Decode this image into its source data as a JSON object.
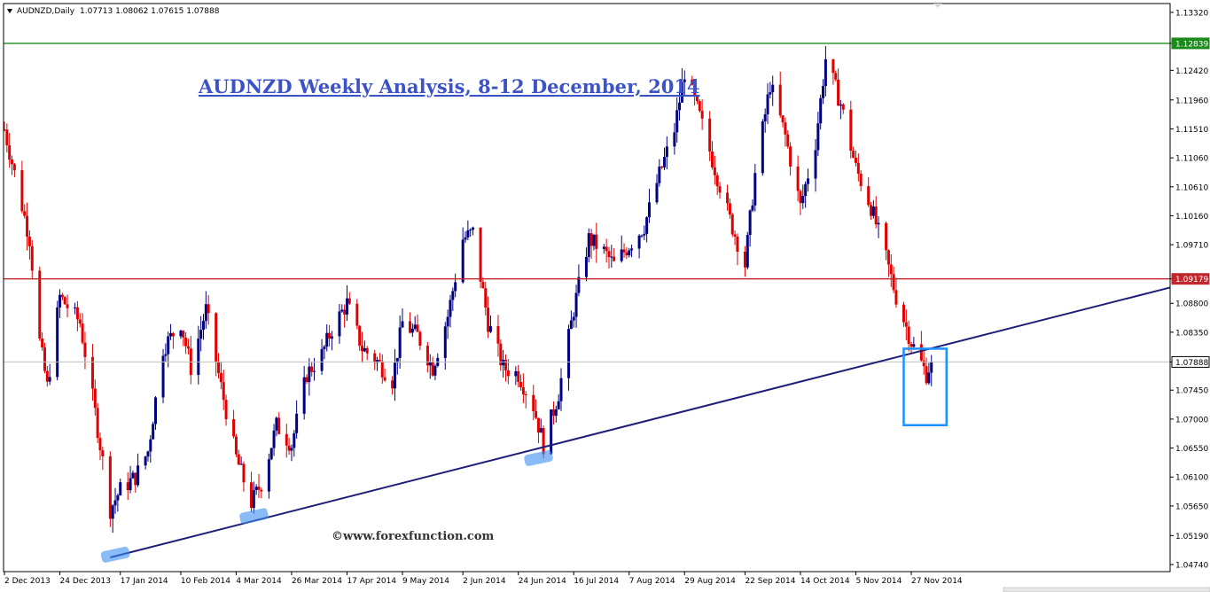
{
  "header": {
    "symbol": "AUDNZD,Daily",
    "ohlc": "1.07713 1.08062 1.07615 1.07888",
    "menu_icon": "triangle-down-icon"
  },
  "title": "AUDNZD Weekly Analysis, 8-12 December, 2014",
  "watermark": "©www.forexfunction.com",
  "chart_data": {
    "type": "candlestick",
    "symbol": "AUDNZD",
    "timeframe": "Daily",
    "title": "AUDNZD Weekly Analysis, 8-12 December, 2014",
    "ylim": [
      1.0474,
      1.1332
    ],
    "y_ticks": [
      "1.13320",
      "1.12839",
      "1.12420",
      "1.11960",
      "1.11510",
      "1.11060",
      "1.10610",
      "1.10160",
      "1.09710",
      "1.09179",
      "1.08800",
      "1.08350",
      "1.07888",
      "1.07450",
      "1.07000",
      "1.06550",
      "1.06100",
      "1.05650",
      "1.05190",
      "1.04740"
    ],
    "x_ticks": [
      "2 Dec 2013",
      "24 Dec 2013",
      "17 Jan 2014",
      "10 Feb 2014",
      "4 Mar 2014",
      "26 Mar 2014",
      "17 Apr 2014",
      "9 May 2014",
      "2 Jun 2014",
      "24 Jun 2014",
      "16 Jul 2014",
      "7 Aug 2014",
      "29 Aug 2014",
      "22 Sep 2014",
      "14 Oct 2014",
      "5 Nov 2014",
      "27 Nov 2014"
    ],
    "last_price": {
      "value": 1.07888,
      "label": "1.07888",
      "color": "#c0c0c0"
    },
    "horizontal_lines": [
      {
        "name": "resistance",
        "value": 1.12839,
        "label": "1.12839",
        "color": "#1a8a1a"
      },
      {
        "name": "support",
        "value": 1.09179,
        "label": "1.09179",
        "color": "#c0282d"
      }
    ],
    "trendline": {
      "from": {
        "date": "13 Jan 2014",
        "price": 1.0485
      },
      "to": {
        "date": "10 Dec 2014",
        "price": 1.0815
      },
      "color": "#1e1e78"
    },
    "touch_highlights": [
      {
        "date": "15 Jan 2014",
        "price": 1.049
      },
      {
        "date": "11 Mar 2014",
        "price": 1.055
      },
      {
        "date": "2 Jul 2014",
        "price": 1.064
      }
    ],
    "focus_box": {
      "from_date": "24 Nov 2014",
      "to_date": "11 Dec 2014",
      "price_low": 1.0725,
      "price_high": 1.0775,
      "color": "#1e90ff"
    },
    "up_color": "#000080",
    "down_color": "#e00000",
    "approx_closes": [
      {
        "date": "2 Dec 2013",
        "close": 1.115
      },
      {
        "date": "12 Dec 2013",
        "close": 1.098
      },
      {
        "date": "16 Dec 2013",
        "close": 1.082
      },
      {
        "date": "19 Dec 2013",
        "close": 1.075
      },
      {
        "date": "24 Dec 2013",
        "close": 1.089
      },
      {
        "date": "1 Jan 2014",
        "close": 1.085
      },
      {
        "date": "7 Jan 2014",
        "close": 1.071
      },
      {
        "date": "13 Jan 2014",
        "close": 1.056
      },
      {
        "date": "17 Jan 2014",
        "close": 1.059
      },
      {
        "date": "23 Jan 2014",
        "close": 1.061
      },
      {
        "date": "28 Jan 2014",
        "close": 1.065
      },
      {
        "date": "3 Feb 2014",
        "close": 1.081
      },
      {
        "date": "10 Feb 2014",
        "close": 1.085
      },
      {
        "date": "14 Feb 2014",
        "close": 1.078
      },
      {
        "date": "20 Feb 2014",
        "close": 1.087
      },
      {
        "date": "26 Feb 2014",
        "close": 1.075
      },
      {
        "date": "4 Mar 2014",
        "close": 1.064
      },
      {
        "date": "10 Mar 2014",
        "close": 1.057
      },
      {
        "date": "14 Mar 2014",
        "close": 1.06
      },
      {
        "date": "20 Mar 2014",
        "close": 1.069
      },
      {
        "date": "26 Mar 2014",
        "close": 1.066
      },
      {
        "date": "1 Apr 2014",
        "close": 1.077
      },
      {
        "date": "7 Apr 2014",
        "close": 1.08
      },
      {
        "date": "11 Apr 2014",
        "close": 1.084
      },
      {
        "date": "17 Apr 2014",
        "close": 1.088
      },
      {
        "date": "23 Apr 2014",
        "close": 1.081
      },
      {
        "date": "29 Apr 2014",
        "close": 1.079
      },
      {
        "date": "5 May 2014",
        "close": 1.076
      },
      {
        "date": "9 May 2014",
        "close": 1.085
      },
      {
        "date": "15 May 2014",
        "close": 1.083
      },
      {
        "date": "21 May 2014",
        "close": 1.078
      },
      {
        "date": "27 May 2014",
        "close": 1.086
      },
      {
        "date": "2 Jun 2014",
        "close": 1.098
      },
      {
        "date": "6 Jun 2014",
        "close": 1.099
      },
      {
        "date": "12 Jun 2014",
        "close": 1.085
      },
      {
        "date": "18 Jun 2014",
        "close": 1.078
      },
      {
        "date": "24 Jun 2014",
        "close": 1.077
      },
      {
        "date": "30 Jun 2014",
        "close": 1.072
      },
      {
        "date": "4 Jul 2014",
        "close": 1.066
      },
      {
        "date": "10 Jul 2014",
        "close": 1.074
      },
      {
        "date": "16 Jul 2014",
        "close": 1.087
      },
      {
        "date": "22 Jul 2014",
        "close": 1.098
      },
      {
        "date": "28 Jul 2014",
        "close": 1.096
      },
      {
        "date": "1 Aug 2014",
        "close": 1.094
      },
      {
        "date": "7 Aug 2014",
        "close": 1.097
      },
      {
        "date": "13 Aug 2014",
        "close": 1.1
      },
      {
        "date": "19 Aug 2014",
        "close": 1.108
      },
      {
        "date": "25 Aug 2014",
        "close": 1.115
      },
      {
        "date": "29 Aug 2014",
        "close": 1.124
      },
      {
        "date": "4 Sep 2014",
        "close": 1.117
      },
      {
        "date": "10 Sep 2014",
        "close": 1.109
      },
      {
        "date": "16 Sep 2014",
        "close": 1.101
      },
      {
        "date": "22 Sep 2014",
        "close": 1.094
      },
      {
        "date": "26 Sep 2014",
        "close": 1.108
      },
      {
        "date": "2 Oct 2014",
        "close": 1.122
      },
      {
        "date": "8 Oct 2014",
        "close": 1.114
      },
      {
        "date": "14 Oct 2014",
        "close": 1.103
      },
      {
        "date": "20 Oct 2014",
        "close": 1.113
      },
      {
        "date": "24 Oct 2014",
        "close": 1.126
      },
      {
        "date": "30 Oct 2014",
        "close": 1.119
      },
      {
        "date": "5 Nov 2014",
        "close": 1.109
      },
      {
        "date": "11 Nov 2014",
        "close": 1.103
      },
      {
        "date": "17 Nov 2014",
        "close": 1.095
      },
      {
        "date": "21 Nov 2014",
        "close": 1.089
      },
      {
        "date": "27 Nov 2014",
        "close": 1.082
      },
      {
        "date": "3 Dec 2014",
        "close": 1.077
      },
      {
        "date": "5 Dec 2014",
        "close": 1.07888
      }
    ]
  }
}
